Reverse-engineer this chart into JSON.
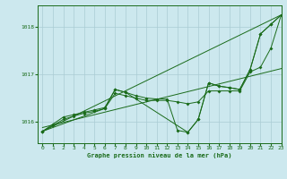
{
  "title": "Graphe pression niveau de la mer (hPa)",
  "background_color": "#cce8ee",
  "grid_color": "#aaccd4",
  "line_color": "#1a6b1a",
  "xlim": [
    -0.5,
    23
  ],
  "ylim": [
    1015.55,
    1018.45
  ],
  "yticks": [
    1016,
    1017,
    1018
  ],
  "xticks": [
    0,
    1,
    2,
    3,
    4,
    5,
    6,
    7,
    8,
    9,
    10,
    11,
    12,
    13,
    14,
    15,
    16,
    17,
    18,
    19,
    20,
    21,
    22,
    23
  ],
  "line1_x": [
    0,
    1,
    2,
    3,
    4,
    5,
    6,
    7,
    8,
    9,
    10,
    11,
    12,
    13,
    14,
    15,
    16,
    17,
    18,
    19,
    20,
    21,
    22,
    23
  ],
  "line1_y": [
    1015.8,
    1015.95,
    1016.1,
    1016.15,
    1016.2,
    1016.25,
    1016.3,
    1016.68,
    1016.62,
    1016.55,
    1016.5,
    1016.48,
    1016.48,
    1015.82,
    1015.78,
    1016.05,
    1016.82,
    1016.75,
    1016.72,
    1016.68,
    1017.1,
    1017.85,
    1018.05,
    1018.25
  ],
  "line2_x": [
    0,
    1,
    2,
    3,
    4,
    5,
    6,
    7,
    8,
    9,
    10,
    11,
    12,
    13,
    14,
    15,
    16,
    17,
    18,
    19,
    20,
    21,
    22,
    23
  ],
  "line2_y": [
    1015.8,
    1015.92,
    1016.05,
    1016.12,
    1016.18,
    1016.22,
    1016.28,
    1016.6,
    1016.55,
    1016.5,
    1016.45,
    1016.45,
    1016.45,
    1016.42,
    1016.38,
    1016.42,
    1016.65,
    1016.65,
    1016.65,
    1016.65,
    1017.05,
    1017.15,
    1017.55,
    1018.25
  ],
  "line3_x": [
    0,
    23
  ],
  "line3_y": [
    1015.8,
    1018.25
  ],
  "line4_x": [
    0,
    23
  ],
  "line4_y": [
    1015.88,
    1017.12
  ],
  "line5_x": [
    0,
    6,
    7,
    8,
    14,
    15,
    16,
    17,
    18,
    19,
    20,
    21,
    22,
    23
  ],
  "line5_y": [
    1015.8,
    1016.28,
    1016.68,
    1016.62,
    1015.78,
    1016.05,
    1016.82,
    1016.75,
    1016.72,
    1016.68,
    1017.1,
    1017.85,
    1018.05,
    1018.25
  ]
}
